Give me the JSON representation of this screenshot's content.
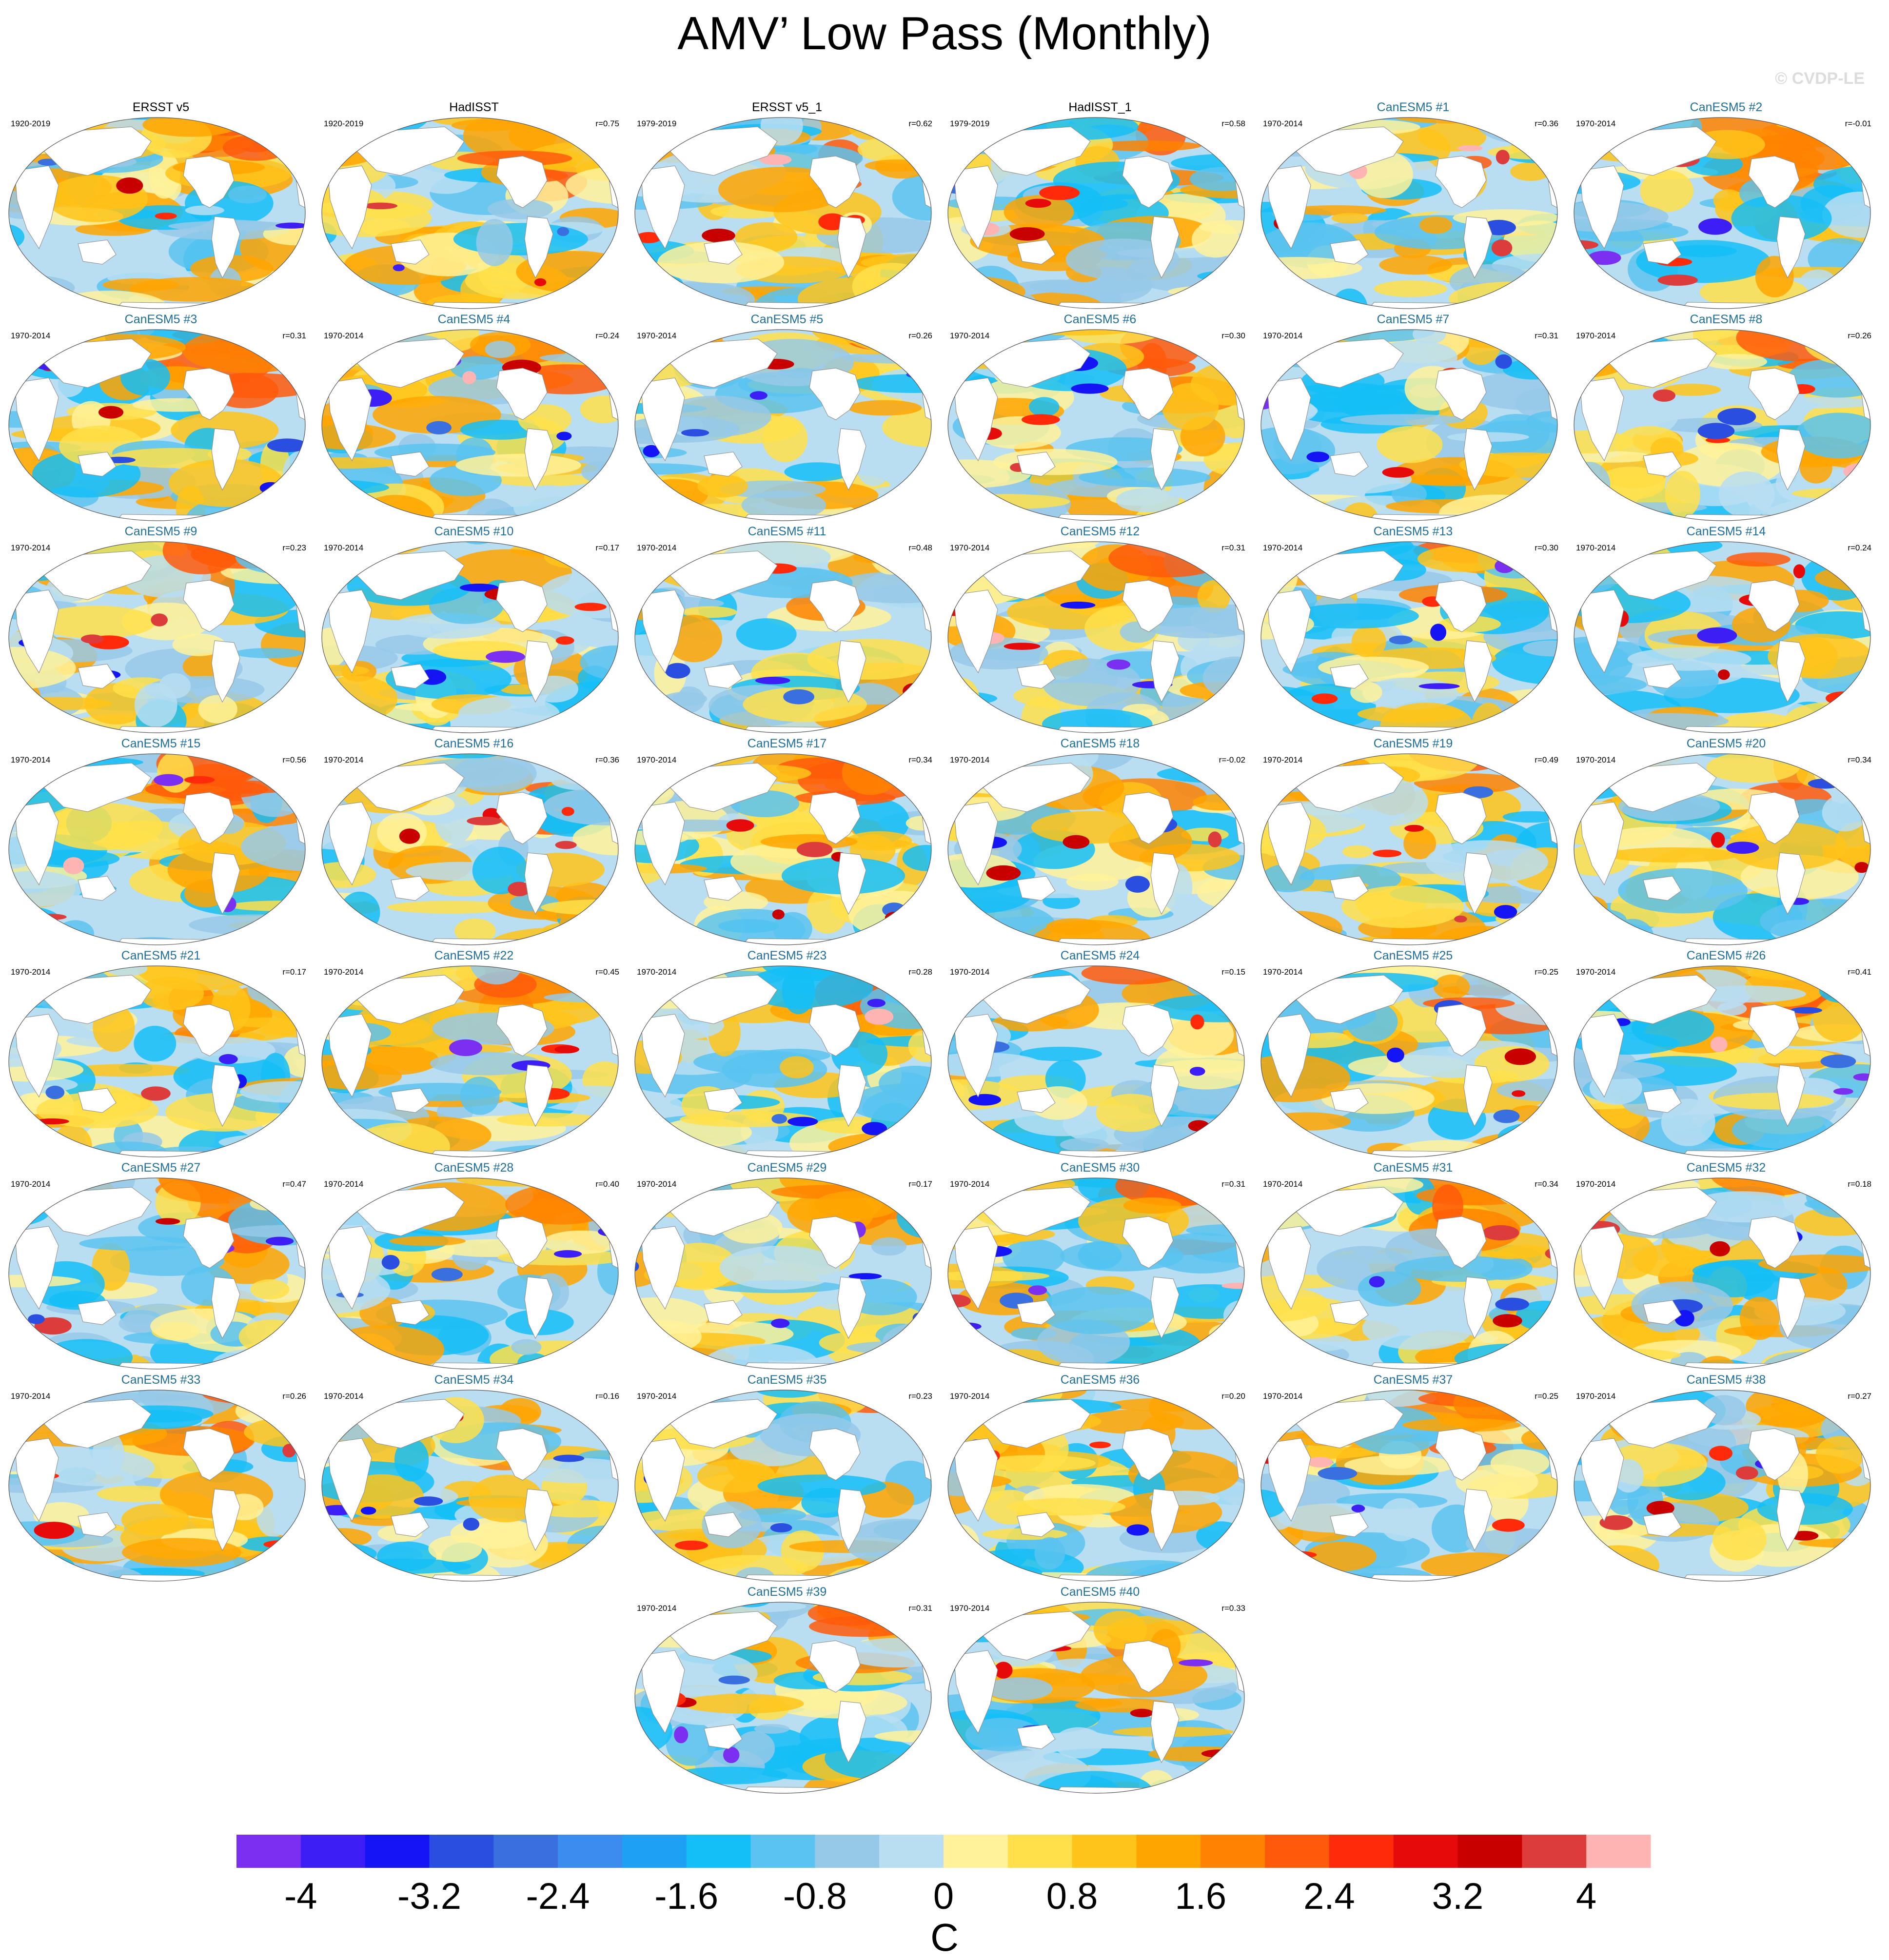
{
  "title": "AMV’ Low Pass (Monthly)",
  "watermark": "© CVDP-LE",
  "chart_data": {
    "type": "heatmap",
    "variable": "AMV’ Low Pass (Monthly)",
    "projection": "global Robinson map",
    "units": "C",
    "panels": [
      {
        "title": "ERSST v5",
        "period": "1920-2019",
        "r": "",
        "kind": "obs"
      },
      {
        "title": "HadISST",
        "period": "1920-2019",
        "r": "r=0.75",
        "kind": "obs"
      },
      {
        "title": "ERSST v5_1",
        "period": "1979-2019",
        "r": "r=0.62",
        "kind": "obs"
      },
      {
        "title": "HadISST_1",
        "period": "1979-2019",
        "r": "r=0.58",
        "kind": "obs"
      },
      {
        "title": "CanESM5 #1",
        "period": "1970-2014",
        "r": "r=0.36",
        "kind": "model"
      },
      {
        "title": "CanESM5 #2",
        "period": "1970-2014",
        "r": "r=-0.01",
        "kind": "model"
      },
      {
        "title": "CanESM5 #3",
        "period": "1970-2014",
        "r": "r=0.31",
        "kind": "model"
      },
      {
        "title": "CanESM5 #4",
        "period": "1970-2014",
        "r": "r=0.24",
        "kind": "model"
      },
      {
        "title": "CanESM5 #5",
        "period": "1970-2014",
        "r": "r=0.26",
        "kind": "model"
      },
      {
        "title": "CanESM5 #6",
        "period": "1970-2014",
        "r": "r=0.30",
        "kind": "model"
      },
      {
        "title": "CanESM5 #7",
        "period": "1970-2014",
        "r": "r=0.31",
        "kind": "model"
      },
      {
        "title": "CanESM5 #8",
        "period": "1970-2014",
        "r": "r=0.26",
        "kind": "model"
      },
      {
        "title": "CanESM5 #9",
        "period": "1970-2014",
        "r": "r=0.23",
        "kind": "model"
      },
      {
        "title": "CanESM5 #10",
        "period": "1970-2014",
        "r": "r=0.17",
        "kind": "model"
      },
      {
        "title": "CanESM5 #11",
        "period": "1970-2014",
        "r": "r=0.48",
        "kind": "model"
      },
      {
        "title": "CanESM5 #12",
        "period": "1970-2014",
        "r": "r=0.31",
        "kind": "model"
      },
      {
        "title": "CanESM5 #13",
        "period": "1970-2014",
        "r": "r=0.30",
        "kind": "model"
      },
      {
        "title": "CanESM5 #14",
        "period": "1970-2014",
        "r": "r=0.24",
        "kind": "model"
      },
      {
        "title": "CanESM5 #15",
        "period": "1970-2014",
        "r": "r=0.56",
        "kind": "model"
      },
      {
        "title": "CanESM5 #16",
        "period": "1970-2014",
        "r": "r=0.36",
        "kind": "model"
      },
      {
        "title": "CanESM5 #17",
        "period": "1970-2014",
        "r": "r=0.34",
        "kind": "model"
      },
      {
        "title": "CanESM5 #18",
        "period": "1970-2014",
        "r": "r=-0.02",
        "kind": "model"
      },
      {
        "title": "CanESM5 #19",
        "period": "1970-2014",
        "r": "r=0.49",
        "kind": "model"
      },
      {
        "title": "CanESM5 #20",
        "period": "1970-2014",
        "r": "r=0.34",
        "kind": "model"
      },
      {
        "title": "CanESM5 #21",
        "period": "1970-2014",
        "r": "r=0.17",
        "kind": "model"
      },
      {
        "title": "CanESM5 #22",
        "period": "1970-2014",
        "r": "r=0.45",
        "kind": "model"
      },
      {
        "title": "CanESM5 #23",
        "period": "1970-2014",
        "r": "r=0.28",
        "kind": "model"
      },
      {
        "title": "CanESM5 #24",
        "period": "1970-2014",
        "r": "r=0.15",
        "kind": "model"
      },
      {
        "title": "CanESM5 #25",
        "period": "1970-2014",
        "r": "r=0.25",
        "kind": "model"
      },
      {
        "title": "CanESM5 #26",
        "period": "1970-2014",
        "r": "r=0.41",
        "kind": "model"
      },
      {
        "title": "CanESM5 #27",
        "period": "1970-2014",
        "r": "r=0.47",
        "kind": "model"
      },
      {
        "title": "CanESM5 #28",
        "period": "1970-2014",
        "r": "r=0.40",
        "kind": "model"
      },
      {
        "title": "CanESM5 #29",
        "period": "1970-2014",
        "r": "r=0.17",
        "kind": "model"
      },
      {
        "title": "CanESM5 #30",
        "period": "1970-2014",
        "r": "r=0.31",
        "kind": "model"
      },
      {
        "title": "CanESM5 #31",
        "period": "1970-2014",
        "r": "r=0.34",
        "kind": "model"
      },
      {
        "title": "CanESM5 #32",
        "period": "1970-2014",
        "r": "r=0.18",
        "kind": "model"
      },
      {
        "title": "CanESM5 #33",
        "period": "1970-2014",
        "r": "r=0.26",
        "kind": "model"
      },
      {
        "title": "CanESM5 #34",
        "period": "1970-2014",
        "r": "r=0.16",
        "kind": "model"
      },
      {
        "title": "CanESM5 #35",
        "period": "1970-2014",
        "r": "r=0.23",
        "kind": "model"
      },
      {
        "title": "CanESM5 #36",
        "period": "1970-2014",
        "r": "r=0.20",
        "kind": "model"
      },
      {
        "title": "CanESM5 #37",
        "period": "1970-2014",
        "r": "r=0.25",
        "kind": "model"
      },
      {
        "title": "CanESM5 #38",
        "period": "1970-2014",
        "r": "r=0.27",
        "kind": "model"
      },
      {
        "title": "CanESM5 #39",
        "period": "1970-2014",
        "r": "r=0.31",
        "kind": "model"
      },
      {
        "title": "CanESM5 #40",
        "period": "1970-2014",
        "r": "r=0.33",
        "kind": "model"
      }
    ],
    "colorbar": {
      "min": -4.4,
      "max": 4.4,
      "step": 0.4,
      "tick_labels": [
        "-4",
        "-3.2",
        "-2.4",
        "-1.6",
        "-0.8",
        "0",
        "0.8",
        "1.6",
        "2.4",
        "3.2",
        "4"
      ],
      "tick_values": [
        -4,
        -3.2,
        -2.4,
        -1.6,
        -0.8,
        0,
        0.8,
        1.6,
        2.4,
        3.2,
        4
      ],
      "colors": [
        "#7b2ff0",
        "#3d1ef5",
        "#1414f5",
        "#2a4ee0",
        "#3a6fe0",
        "#3c8cf0",
        "#1ea0f5",
        "#14bef7",
        "#5ac3f0",
        "#96c9e8",
        "#b9def2",
        "#fff29a",
        "#ffe04a",
        "#ffc41a",
        "#ffa500",
        "#ff8200",
        "#ff5a0a",
        "#ff2a0a",
        "#e60a0a",
        "#c80000",
        "#dc3c3c",
        "#ffb4b4"
      ],
      "unit": "C"
    }
  }
}
